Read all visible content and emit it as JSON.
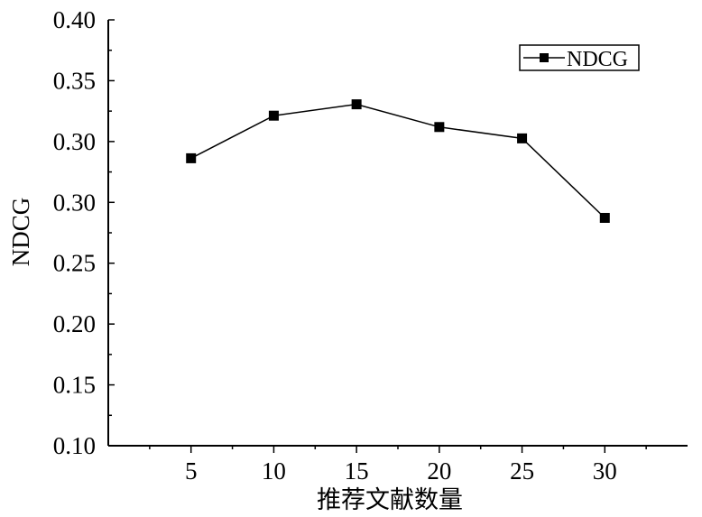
{
  "chart_data": {
    "type": "line",
    "title": "",
    "xlabel": "推荐文献数量",
    "ylabel": "NDCG",
    "x": [
      5,
      10,
      15,
      20,
      25,
      30
    ],
    "series": [
      {
        "name": "NDCG",
        "values": [
          0.3025,
          0.3325,
          0.3405,
          0.3245,
          0.3165,
          0.2605
        ]
      }
    ],
    "xlim": [
      0,
      35
    ],
    "ylim": [
      0.1,
      0.4
    ],
    "xticks": [
      "5",
      "10",
      "15",
      "20",
      "25",
      "30"
    ],
    "yticks": [
      "0.10",
      "0.15",
      "0.20",
      "0.25",
      "0.30",
      "0.30",
      "0.35",
      "0.40"
    ],
    "ytick_values": [
      0.1,
      0.15,
      0.2,
      0.25,
      0.3,
      0.3,
      0.35,
      0.4
    ],
    "grid": false,
    "legend": "top-right",
    "colors": {
      "line": "#000000",
      "marker": "#000000",
      "axis": "#000000"
    }
  }
}
